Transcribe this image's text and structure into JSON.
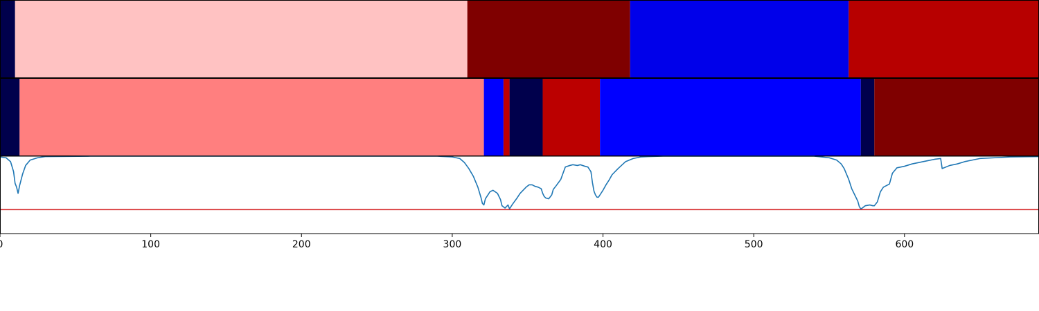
{
  "chart_data": [
    {
      "type": "heatmap",
      "xlim": [
        0,
        689
      ],
      "segments": [
        {
          "start": 0,
          "end": 10,
          "color": "#00004c"
        },
        {
          "start": 10,
          "end": 310,
          "color": "#ffc2c2"
        },
        {
          "start": 310,
          "end": 418,
          "color": "#7f0000"
        },
        {
          "start": 418,
          "end": 563,
          "color": "#0000ea"
        },
        {
          "start": 563,
          "end": 689,
          "color": "#b70000"
        }
      ]
    },
    {
      "type": "heatmap",
      "xlim": [
        0,
        689
      ],
      "segments": [
        {
          "start": 0,
          "end": 13,
          "color": "#00004c"
        },
        {
          "start": 13,
          "end": 321,
          "color": "#ff7f7f"
        },
        {
          "start": 321,
          "end": 334,
          "color": "#0000ff"
        },
        {
          "start": 334,
          "end": 338,
          "color": "#c00000"
        },
        {
          "start": 338,
          "end": 360,
          "color": "#00004c"
        },
        {
          "start": 360,
          "end": 398,
          "color": "#bb0000"
        },
        {
          "start": 398,
          "end": 571,
          "color": "#0000ff"
        },
        {
          "start": 571,
          "end": 580,
          "color": "#00004c"
        },
        {
          "start": 580,
          "end": 689,
          "color": "#7f0000"
        }
      ]
    },
    {
      "type": "line",
      "xlim": [
        0,
        689
      ],
      "ylim": [
        0,
        1
      ],
      "threshold": 0.31,
      "threshold_color": "#d62728",
      "line_color": "#1f77b4",
      "x": [
        0,
        4,
        7,
        9,
        10,
        11,
        12,
        13,
        15,
        17,
        20,
        25,
        30,
        60,
        290,
        300,
        305,
        308,
        311,
        314,
        317,
        319,
        320,
        321,
        322,
        325,
        327,
        330,
        332,
        333,
        335,
        337,
        338,
        340,
        343,
        345,
        347,
        349,
        351,
        353,
        355,
        357,
        359,
        360,
        361,
        362,
        364,
        366,
        367,
        369,
        372,
        375,
        378,
        380,
        383,
        385,
        388,
        390,
        392,
        393,
        394,
        395,
        396,
        397,
        398,
        400,
        402,
        404,
        406,
        410,
        415,
        420,
        425,
        430,
        440,
        450,
        500,
        540,
        550,
        555,
        558,
        560,
        563,
        565,
        567,
        569,
        570,
        571,
        572,
        574,
        577,
        579,
        580,
        582,
        584,
        586,
        588,
        590,
        592,
        595,
        600,
        605,
        610,
        615,
        620,
        624,
        625,
        630,
        635,
        640,
        645,
        650,
        660,
        670,
        689
      ],
      "y": [
        0.99,
        0.98,
        0.93,
        0.8,
        0.65,
        0.6,
        0.52,
        0.62,
        0.77,
        0.88,
        0.95,
        0.98,
        0.995,
        1.0,
        1.0,
        0.99,
        0.97,
        0.92,
        0.84,
        0.74,
        0.6,
        0.47,
        0.39,
        0.37,
        0.45,
        0.54,
        0.56,
        0.52,
        0.44,
        0.36,
        0.33,
        0.37,
        0.32,
        0.38,
        0.46,
        0.52,
        0.56,
        0.6,
        0.63,
        0.63,
        0.61,
        0.6,
        0.58,
        0.52,
        0.48,
        0.46,
        0.45,
        0.5,
        0.57,
        0.62,
        0.7,
        0.86,
        0.88,
        0.89,
        0.88,
        0.89,
        0.87,
        0.86,
        0.8,
        0.66,
        0.55,
        0.5,
        0.47,
        0.47,
        0.5,
        0.56,
        0.63,
        0.69,
        0.76,
        0.84,
        0.93,
        0.97,
        0.99,
        0.995,
        1.0,
        1.0,
        1.0,
        1.0,
        0.98,
        0.95,
        0.9,
        0.84,
        0.7,
        0.58,
        0.5,
        0.42,
        0.35,
        0.32,
        0.33,
        0.36,
        0.37,
        0.36,
        0.36,
        0.41,
        0.54,
        0.6,
        0.62,
        0.64,
        0.78,
        0.85,
        0.87,
        0.9,
        0.92,
        0.94,
        0.96,
        0.97,
        0.84,
        0.88,
        0.9,
        0.93,
        0.95,
        0.97,
        0.98,
        0.99,
        0.995
      ]
    }
  ],
  "axes": {
    "x_ticks": [
      0,
      100,
      200,
      300,
      400,
      500,
      600
    ],
    "x_tick_labels": [
      "0",
      "100",
      "200",
      "300",
      "400",
      "500",
      "600"
    ]
  }
}
